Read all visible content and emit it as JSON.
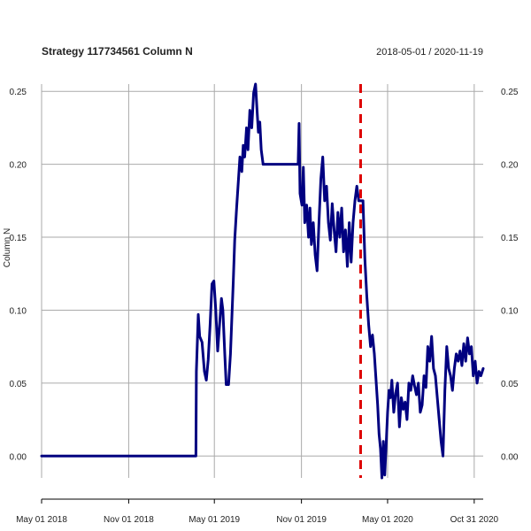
{
  "chart_data": {
    "type": "line",
    "title": "Strategy 117734561 Column N",
    "date_range": "2018-05-01 / 2020-11-19",
    "ylabel": "Column N",
    "xlim": [
      "2018-05-01",
      "2020-11-19"
    ],
    "ylim": [
      -0.015,
      0.255
    ],
    "yticks": [
      0.0,
      0.05,
      0.1,
      0.15,
      0.2,
      0.25
    ],
    "ytick_labels": [
      "0.00",
      "0.05",
      "0.10",
      "0.15",
      "0.20",
      "0.25"
    ],
    "xticks": [
      {
        "date": "2018-05-01",
        "label": "May 01 2018"
      },
      {
        "date": "2018-11-01",
        "label": "Nov 01 2018"
      },
      {
        "date": "2019-05-01",
        "label": "May 01 2019"
      },
      {
        "date": "2019-11-01",
        "label": "Nov 01 2019"
      },
      {
        "date": "2020-05-01",
        "label": "May 01 2020"
      },
      {
        "date": "2020-10-31",
        "label": "Oct 31 2020"
      }
    ],
    "grid": true,
    "vline": {
      "date": "2020-03-05",
      "color": "#dd0000",
      "style": "dashed"
    },
    "series": [
      {
        "color": "#000080",
        "points": [
          [
            "2018-05-01",
            0.0
          ],
          [
            "2019-03-23",
            0.0
          ],
          [
            "2019-03-24",
            0.058
          ],
          [
            "2019-03-28",
            0.097
          ],
          [
            "2019-03-31",
            0.082
          ],
          [
            "2019-04-05",
            0.078
          ],
          [
            "2019-04-10",
            0.058
          ],
          [
            "2019-04-14",
            0.052
          ],
          [
            "2019-04-18",
            0.066
          ],
          [
            "2019-04-22",
            0.09
          ],
          [
            "2019-04-26",
            0.118
          ],
          [
            "2019-04-30",
            0.12
          ],
          [
            "2019-05-04",
            0.1
          ],
          [
            "2019-05-08",
            0.072
          ],
          [
            "2019-05-12",
            0.09
          ],
          [
            "2019-05-16",
            0.108
          ],
          [
            "2019-05-19",
            0.1
          ],
          [
            "2019-05-23",
            0.07
          ],
          [
            "2019-05-26",
            0.049
          ],
          [
            "2019-05-31",
            0.049
          ],
          [
            "2019-06-04",
            0.07
          ],
          [
            "2019-06-07",
            0.095
          ],
          [
            "2019-06-10",
            0.12
          ],
          [
            "2019-06-13",
            0.148
          ],
          [
            "2019-06-17",
            0.17
          ],
          [
            "2019-06-20",
            0.185
          ],
          [
            "2019-06-24",
            0.205
          ],
          [
            "2019-06-28",
            0.195
          ],
          [
            "2019-07-01",
            0.213
          ],
          [
            "2019-07-04",
            0.205
          ],
          [
            "2019-07-08",
            0.225
          ],
          [
            "2019-07-11",
            0.21
          ],
          [
            "2019-07-15",
            0.237
          ],
          [
            "2019-07-19",
            0.225
          ],
          [
            "2019-07-23",
            0.249
          ],
          [
            "2019-07-27",
            0.255
          ],
          [
            "2019-07-30",
            0.238
          ],
          [
            "2019-08-02",
            0.222
          ],
          [
            "2019-08-05",
            0.229
          ],
          [
            "2019-08-08",
            0.21
          ],
          [
            "2019-08-12",
            0.2
          ],
          [
            "2019-10-25",
            0.2
          ],
          [
            "2019-10-27",
            0.228
          ],
          [
            "2019-10-29",
            0.18
          ],
          [
            "2019-11-02",
            0.172
          ],
          [
            "2019-11-05",
            0.198
          ],
          [
            "2019-11-08",
            0.16
          ],
          [
            "2019-11-12",
            0.172
          ],
          [
            "2019-11-16",
            0.15
          ],
          [
            "2019-11-19",
            0.17
          ],
          [
            "2019-11-22",
            0.145
          ],
          [
            "2019-11-26",
            0.16
          ],
          [
            "2019-11-30",
            0.138
          ],
          [
            "2019-12-04",
            0.127
          ],
          [
            "2019-12-08",
            0.16
          ],
          [
            "2019-12-12",
            0.19
          ],
          [
            "2019-12-16",
            0.205
          ],
          [
            "2019-12-20",
            0.175
          ],
          [
            "2019-12-24",
            0.185
          ],
          [
            "2019-12-28",
            0.16
          ],
          [
            "2020-01-01",
            0.148
          ],
          [
            "2020-01-05",
            0.173
          ],
          [
            "2020-01-09",
            0.155
          ],
          [
            "2020-01-13",
            0.14
          ],
          [
            "2020-01-17",
            0.167
          ],
          [
            "2020-01-21",
            0.15
          ],
          [
            "2020-01-25",
            0.17
          ],
          [
            "2020-01-29",
            0.14
          ],
          [
            "2020-02-02",
            0.155
          ],
          [
            "2020-02-06",
            0.13
          ],
          [
            "2020-02-10",
            0.16
          ],
          [
            "2020-02-14",
            0.133
          ],
          [
            "2020-02-18",
            0.16
          ],
          [
            "2020-02-22",
            0.175
          ],
          [
            "2020-02-26",
            0.185
          ],
          [
            "2020-03-01",
            0.175
          ],
          [
            "2020-03-10",
            0.175
          ],
          [
            "2020-03-14",
            0.135
          ],
          [
            "2020-03-18",
            0.11
          ],
          [
            "2020-03-22",
            0.09
          ],
          [
            "2020-03-26",
            0.075
          ],
          [
            "2020-03-30",
            0.083
          ],
          [
            "2020-04-03",
            0.07
          ],
          [
            "2020-04-06",
            0.055
          ],
          [
            "2020-04-10",
            0.035
          ],
          [
            "2020-04-13",
            0.015
          ],
          [
            "2020-04-16",
            0.005
          ],
          [
            "2020-04-19",
            -0.015
          ],
          [
            "2020-04-22",
            0.01
          ],
          [
            "2020-04-25",
            -0.013
          ],
          [
            "2020-04-28",
            0.008
          ],
          [
            "2020-05-01",
            0.03
          ],
          [
            "2020-05-04",
            0.045
          ],
          [
            "2020-05-07",
            0.04
          ],
          [
            "2020-05-10",
            0.052
          ],
          [
            "2020-05-14",
            0.03
          ],
          [
            "2020-05-18",
            0.043
          ],
          [
            "2020-05-22",
            0.05
          ],
          [
            "2020-05-26",
            0.02
          ],
          [
            "2020-05-30",
            0.04
          ],
          [
            "2020-06-03",
            0.032
          ],
          [
            "2020-06-07",
            0.037
          ],
          [
            "2020-06-11",
            0.025
          ],
          [
            "2020-06-15",
            0.05
          ],
          [
            "2020-06-19",
            0.045
          ],
          [
            "2020-06-23",
            0.055
          ],
          [
            "2020-06-27",
            0.048
          ],
          [
            "2020-07-01",
            0.042
          ],
          [
            "2020-07-05",
            0.05
          ],
          [
            "2020-07-09",
            0.03
          ],
          [
            "2020-07-13",
            0.035
          ],
          [
            "2020-07-17",
            0.055
          ],
          [
            "2020-07-21",
            0.047
          ],
          [
            "2020-07-25",
            0.075
          ],
          [
            "2020-07-29",
            0.065
          ],
          [
            "2020-08-02",
            0.082
          ],
          [
            "2020-08-06",
            0.06
          ],
          [
            "2020-08-10",
            0.055
          ],
          [
            "2020-08-14",
            0.04
          ],
          [
            "2020-08-18",
            0.025
          ],
          [
            "2020-08-22",
            0.01
          ],
          [
            "2020-08-26",
            0.0
          ],
          [
            "2020-08-30",
            0.045
          ],
          [
            "2020-09-03",
            0.075
          ],
          [
            "2020-09-07",
            0.06
          ],
          [
            "2020-09-11",
            0.055
          ],
          [
            "2020-09-15",
            0.045
          ],
          [
            "2020-09-19",
            0.06
          ],
          [
            "2020-09-23",
            0.07
          ],
          [
            "2020-09-27",
            0.065
          ],
          [
            "2020-10-01",
            0.072
          ],
          [
            "2020-10-05",
            0.062
          ],
          [
            "2020-10-09",
            0.077
          ],
          [
            "2020-10-13",
            0.065
          ],
          [
            "2020-10-17",
            0.081
          ],
          [
            "2020-10-21",
            0.07
          ],
          [
            "2020-10-25",
            0.075
          ],
          [
            "2020-10-29",
            0.055
          ],
          [
            "2020-11-02",
            0.065
          ],
          [
            "2020-11-06",
            0.05
          ],
          [
            "2020-11-10",
            0.058
          ],
          [
            "2020-11-14",
            0.055
          ],
          [
            "2020-11-19",
            0.06
          ]
        ]
      }
    ]
  }
}
